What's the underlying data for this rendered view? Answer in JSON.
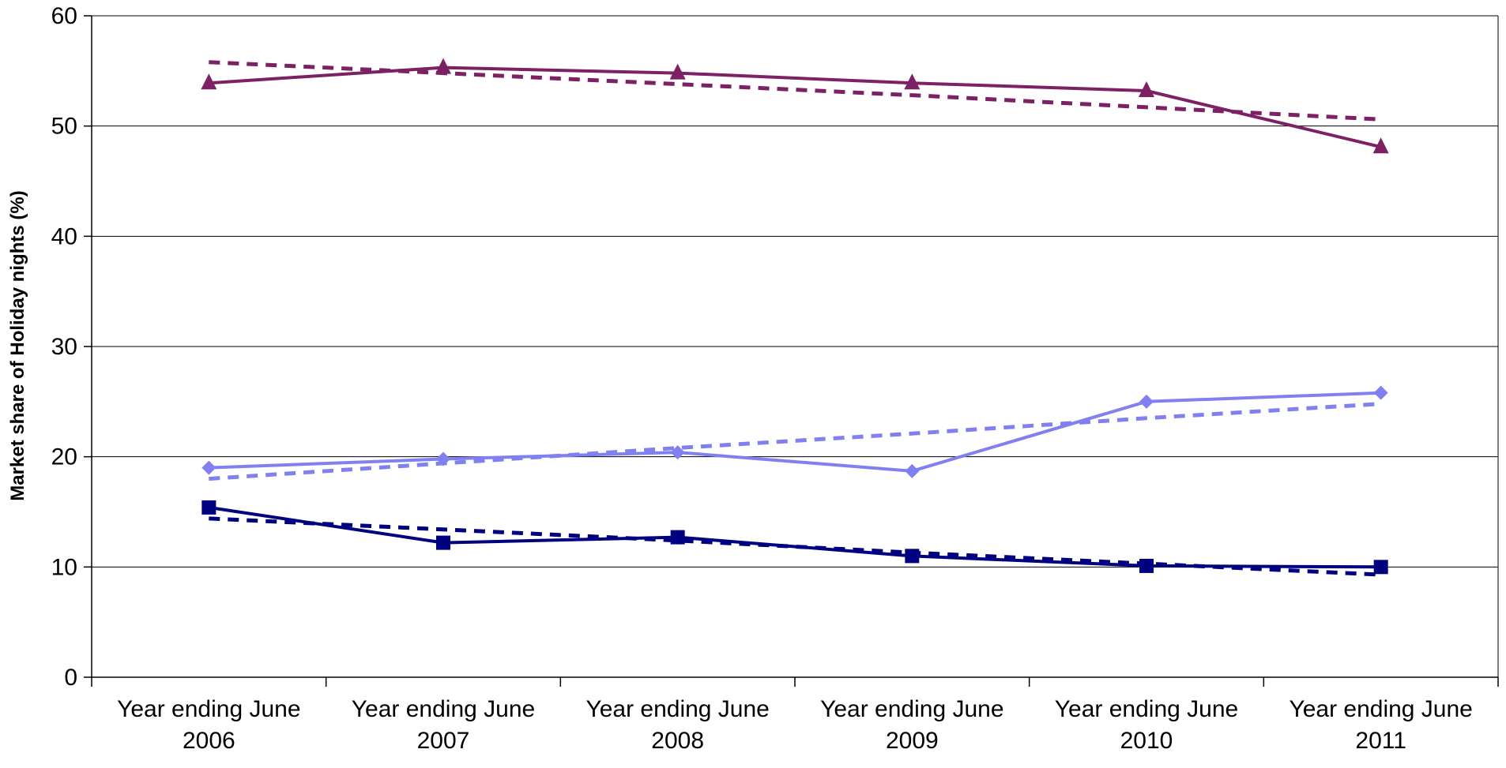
{
  "chart_data": {
    "type": "line",
    "title": "",
    "xlabel": "",
    "ylabel": "Market share of Holiday nights (%)",
    "categories": [
      [
        "Year ending June",
        "2006"
      ],
      [
        "Year ending June",
        "2007"
      ],
      [
        "Year ending June",
        "2008"
      ],
      [
        "Year ending June",
        "2009"
      ],
      [
        "Year ending June",
        "2010"
      ],
      [
        "Year ending June",
        "2011"
      ]
    ],
    "ylim": [
      0,
      60
    ],
    "yticks": [
      0,
      10,
      20,
      30,
      40,
      50,
      60
    ],
    "grid": true,
    "legend": "none",
    "series": [
      {
        "values": [
          53.9,
          55.3,
          54.8,
          53.9,
          53.2,
          48.1
        ],
        "color": "#7B2164",
        "marker": "triangle",
        "line_style": "solid"
      },
      {
        "values": [
          55.8,
          54.8,
          53.8,
          52.8,
          51.7,
          50.6
        ],
        "color": "#7B2164",
        "marker": "none",
        "line_style": "dashed",
        "trend": true
      },
      {
        "values": [
          19.0,
          19.8,
          20.4,
          18.7,
          25.0,
          25.8
        ],
        "color": "#8080F0",
        "marker": "diamond",
        "line_style": "solid"
      },
      {
        "values": [
          18.0,
          19.4,
          20.8,
          22.1,
          23.5,
          24.8
        ],
        "color": "#8080F0",
        "marker": "none",
        "line_style": "dashed",
        "trend": true
      },
      {
        "values": [
          15.4,
          12.2,
          12.7,
          11.0,
          10.1,
          10.0
        ],
        "color": "#000080",
        "marker": "square",
        "line_style": "solid"
      },
      {
        "values": [
          14.4,
          13.4,
          12.4,
          11.3,
          10.3,
          9.3
        ],
        "color": "#000080",
        "marker": "none",
        "line_style": "dashed",
        "trend": true
      }
    ]
  }
}
